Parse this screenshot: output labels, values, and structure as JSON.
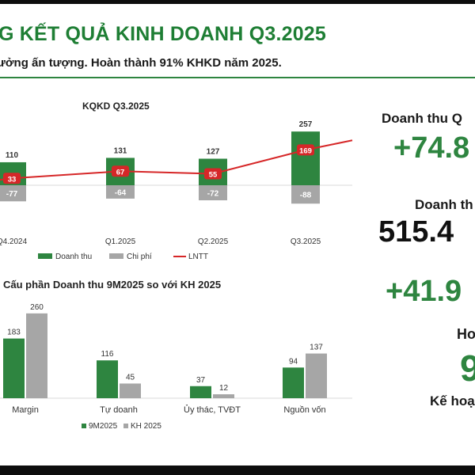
{
  "header": {
    "title": "G KẾT QUẢ KINH DOANH Q3.2025",
    "subtitle": "ưởng ấn tượng. Hoàn thành 91% KHKD năm 2025."
  },
  "kpis": {
    "label_1": "Doanh thu Q",
    "value_1": "+74.8",
    "label_2": "Doanh th",
    "value_2": "515.4",
    "value_3": "+41.9",
    "label_3": "Ho",
    "value_4": "9",
    "label_4": "Kế hoạ"
  },
  "colors": {
    "green": "#2e8540",
    "gray": "#a6a6a6",
    "red": "#d62728"
  },
  "chart_data": [
    {
      "type": "bar",
      "title": "KQKD Q3.2025",
      "categories": [
        "Q4.2024",
        "Q1.2025",
        "Q2.2025",
        "Q3.2025"
      ],
      "series": [
        {
          "name": "Doanh thu",
          "kind": "bar",
          "values": [
            110,
            131,
            127,
            257
          ],
          "labels": [
            "110",
            "131",
            "127",
            "257"
          ]
        },
        {
          "name": "Chi phí",
          "kind": "bar",
          "values": [
            -77,
            -64,
            -72,
            -88
          ],
          "labels": [
            "-77",
            "-64",
            "-72",
            "-88"
          ]
        },
        {
          "name": "LNTT",
          "kind": "line",
          "values": [
            33,
            67,
            55,
            169
          ],
          "labels": [
            "33",
            "67",
            "55",
            "169"
          ]
        }
      ],
      "legend_position": "bottom",
      "grid": false
    },
    {
      "type": "bar",
      "title": "Cấu phần Doanh thu 9M2025 so với KH 2025",
      "categories": [
        "Margin",
        "Tự doanh",
        "Ủy thác, TVĐT",
        "Nguồn vốn"
      ],
      "series": [
        {
          "name": "9M2025",
          "values": [
            183,
            116,
            37,
            94
          ],
          "labels": [
            "183",
            "116",
            "37",
            "94"
          ]
        },
        {
          "name": "KH 2025",
          "values": [
            260,
            45,
            12,
            137
          ],
          "labels": [
            "260",
            "45",
            "12",
            "137"
          ]
        }
      ],
      "legend_position": "bottom",
      "grid": false
    }
  ]
}
